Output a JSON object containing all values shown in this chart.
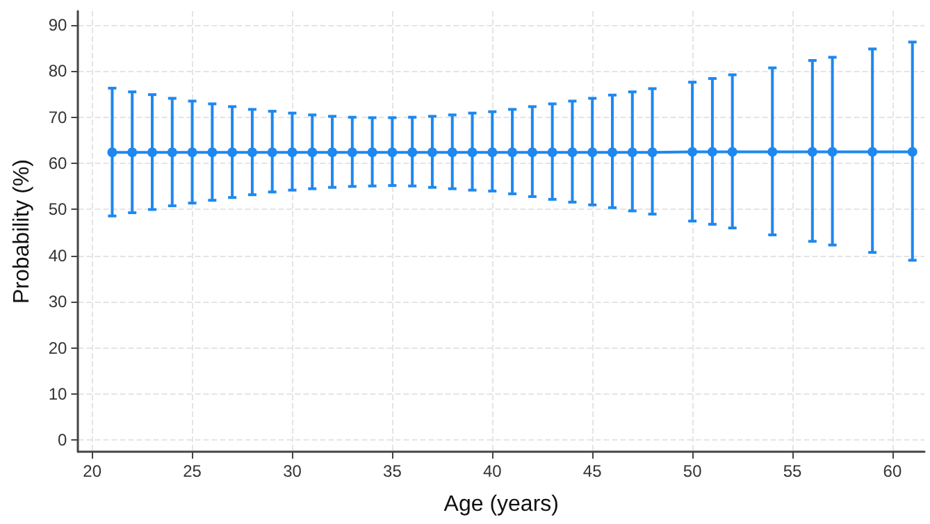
{
  "chart_data": {
    "type": "line",
    "xlabel": "Age (years)",
    "ylabel": "Probability (%)",
    "x": [
      21,
      22,
      23,
      24,
      25,
      26,
      27,
      28,
      29,
      30,
      31,
      32,
      33,
      34,
      35,
      36,
      37,
      38,
      39,
      40,
      41,
      42,
      43,
      44,
      45,
      46,
      47,
      48,
      50,
      51,
      52,
      54,
      56,
      57,
      59,
      61
    ],
    "series": [
      {
        "color": "#1e88f0",
        "values": [
          62.4,
          62.4,
          62.4,
          62.4,
          62.4,
          62.4,
          62.4,
          62.4,
          62.4,
          62.4,
          62.4,
          62.4,
          62.4,
          62.4,
          62.4,
          62.4,
          62.4,
          62.4,
          62.4,
          62.4,
          62.4,
          62.4,
          62.4,
          62.4,
          62.4,
          62.4,
          62.4,
          62.4,
          62.5,
          62.5,
          62.5,
          62.5,
          62.5,
          62.5,
          62.5,
          62.5
        ],
        "errors": [
          [
            48.6,
            76.3
          ],
          [
            49.3,
            75.5
          ],
          [
            50.0,
            74.9
          ],
          [
            50.8,
            74.1
          ],
          [
            51.4,
            73.5
          ],
          [
            52.0,
            72.9
          ],
          [
            52.6,
            72.3
          ],
          [
            53.2,
            71.7
          ],
          [
            53.8,
            71.3
          ],
          [
            54.2,
            70.9
          ],
          [
            54.5,
            70.5
          ],
          [
            54.8,
            70.2
          ],
          [
            55.0,
            70.0
          ],
          [
            55.1,
            69.9
          ],
          [
            55.2,
            69.9
          ],
          [
            55.1,
            70.0
          ],
          [
            54.8,
            70.2
          ],
          [
            54.5,
            70.5
          ],
          [
            54.2,
            70.9
          ],
          [
            54.0,
            71.2
          ],
          [
            53.4,
            71.7
          ],
          [
            52.8,
            72.3
          ],
          [
            52.2,
            72.9
          ],
          [
            51.6,
            73.5
          ],
          [
            51.0,
            74.1
          ],
          [
            50.4,
            74.8
          ],
          [
            49.7,
            75.5
          ],
          [
            49.0,
            76.2
          ],
          [
            47.5,
            77.6
          ],
          [
            46.8,
            78.4
          ],
          [
            46.0,
            79.2
          ],
          [
            44.5,
            80.7
          ],
          [
            43.1,
            82.3
          ],
          [
            42.3,
            83.0
          ],
          [
            40.7,
            84.8
          ],
          [
            39.0,
            86.3
          ]
        ]
      }
    ],
    "xlim": [
      19.3,
      61.6
    ],
    "xticks": [
      20,
      25,
      30,
      35,
      40,
      45,
      50,
      55,
      60
    ],
    "ylim": [
      -2.5,
      93
    ],
    "yticks": [
      0,
      10,
      20,
      30,
      40,
      50,
      60,
      70,
      80,
      90
    ],
    "grid": true,
    "marker": "circle",
    "line_style": "solid"
  }
}
